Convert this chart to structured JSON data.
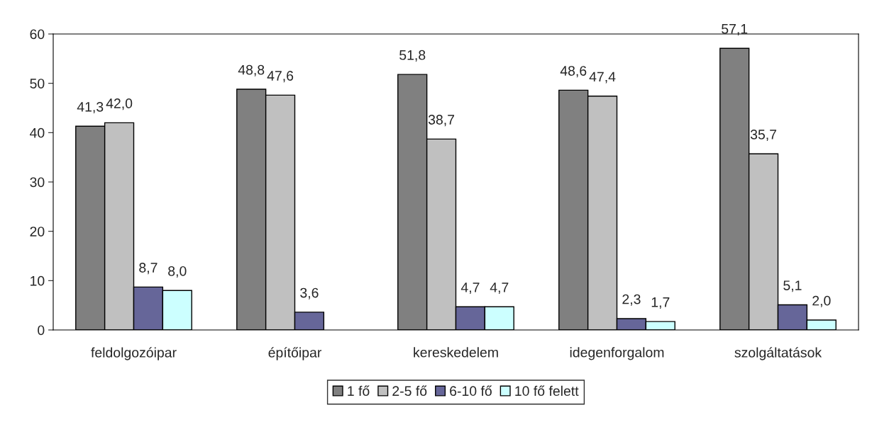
{
  "chart_data": {
    "type": "bar",
    "categories": [
      "feldolgozóipar",
      "építőipar",
      "kereskedelem",
      "idegenforgalom",
      "szolgáltatások"
    ],
    "series": [
      {
        "name": "1 fő",
        "color": "#808080",
        "values": [
          41.3,
          48.8,
          51.8,
          48.6,
          57.1
        ],
        "value_labels": [
          "41,3",
          "48,8",
          "51,8",
          "48,6",
          "57,1"
        ]
      },
      {
        "name": "2-5 fő",
        "color": "#c0c0c0",
        "values": [
          42.0,
          47.6,
          38.7,
          47.4,
          35.7
        ],
        "value_labels": [
          "42,0",
          "47,6",
          "38,7",
          "47,4",
          "35,7"
        ]
      },
      {
        "name": "6-10 fő",
        "color": "#666699",
        "values": [
          8.7,
          3.6,
          4.7,
          2.3,
          5.1
        ],
        "value_labels": [
          "8,7",
          "3,6",
          "4,7",
          "2,3",
          "5,1"
        ]
      },
      {
        "name": "10 fő felett",
        "color": "#ccffff",
        "values": [
          8.0,
          null,
          4.7,
          1.7,
          2.0
        ],
        "value_labels": [
          "8,0",
          null,
          "4,7",
          "1,7",
          "2,0"
        ]
      }
    ],
    "ylim": [
      0,
      60
    ],
    "yticks": [
      0,
      10,
      20,
      30,
      40,
      50,
      60
    ],
    "grid": false,
    "legend": "bottom"
  }
}
